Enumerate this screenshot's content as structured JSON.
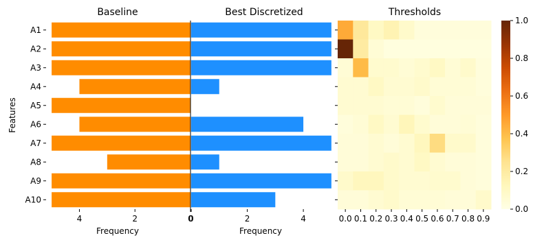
{
  "chart_data": [
    {
      "type": "bar",
      "orientation": "horizontal",
      "direction": "reversed",
      "title": "Baseline",
      "xlabel": "Frequency",
      "ylabel": "Features",
      "categories": [
        "A1",
        "A2",
        "A3",
        "A4",
        "A5",
        "A6",
        "A7",
        "A8",
        "A9",
        "A10"
      ],
      "values": [
        5,
        5,
        5,
        4,
        5,
        4,
        5,
        3,
        5,
        5
      ],
      "xlim": [
        5.2,
        0
      ],
      "xticks": [
        "4",
        "2",
        "0"
      ],
      "color": "#ff8c00"
    },
    {
      "type": "bar",
      "orientation": "horizontal",
      "title": "Best Discretized",
      "xlabel": "Frequency",
      "categories": [
        "A1",
        "A2",
        "A3",
        "A4",
        "A5",
        "A6",
        "A7",
        "A8",
        "A9",
        "A10"
      ],
      "values": [
        5,
        5,
        5,
        1,
        0,
        4,
        5,
        1,
        5,
        3
      ],
      "xlim": [
        0,
        5.2
      ],
      "xticks": [
        "0",
        "2",
        "4"
      ],
      "color": "#1e90ff"
    },
    {
      "type": "heatmap",
      "title": "Thresholds",
      "rows": [
        "A1",
        "A2",
        "A3",
        "A4",
        "A5",
        "A6",
        "A7",
        "A8",
        "A9",
        "A10"
      ],
      "columns": [
        "0.0",
        "0.1",
        "0.2",
        "0.3",
        "0.4",
        "0.5",
        "0.6",
        "0.7",
        "0.8",
        "0.9"
      ],
      "values": [
        [
          0.45,
          0.22,
          0.1,
          0.15,
          0.08,
          0.03,
          0.03,
          0.03,
          0.03,
          0.03
        ],
        [
          1.0,
          0.2,
          0.05,
          0.02,
          0.02,
          0.02,
          0.02,
          0.02,
          0.02,
          0.02
        ],
        [
          0.05,
          0.4,
          0.07,
          0.07,
          0.05,
          0.07,
          0.1,
          0.05,
          0.08,
          0.03
        ],
        [
          0.06,
          0.06,
          0.1,
          0.06,
          0.06,
          0.08,
          0.05,
          0.05,
          0.05,
          0.03
        ],
        [
          0.06,
          0.06,
          0.06,
          0.05,
          0.05,
          0.03,
          0.07,
          0.04,
          0.04,
          0.04
        ],
        [
          0.03,
          0.05,
          0.1,
          0.06,
          0.13,
          0.07,
          0.04,
          0.04,
          0.05,
          0.03
        ],
        [
          0.04,
          0.04,
          0.06,
          0.04,
          0.06,
          0.12,
          0.28,
          0.08,
          0.08,
          0.03
        ],
        [
          0.04,
          0.04,
          0.06,
          0.08,
          0.06,
          0.1,
          0.06,
          0.04,
          0.04,
          0.03
        ],
        [
          0.08,
          0.12,
          0.12,
          0.08,
          0.06,
          0.06,
          0.07,
          0.07,
          0.04,
          0.03
        ],
        [
          0.04,
          0.04,
          0.06,
          0.08,
          0.05,
          0.05,
          0.05,
          0.04,
          0.04,
          0.08
        ]
      ],
      "vmin": 0,
      "vmax": 1,
      "colormap": "YlOrBr",
      "colorbar_ticks": [
        "0.0",
        "0.2",
        "0.4",
        "0.6",
        "0.8",
        "1.0"
      ]
    }
  ]
}
